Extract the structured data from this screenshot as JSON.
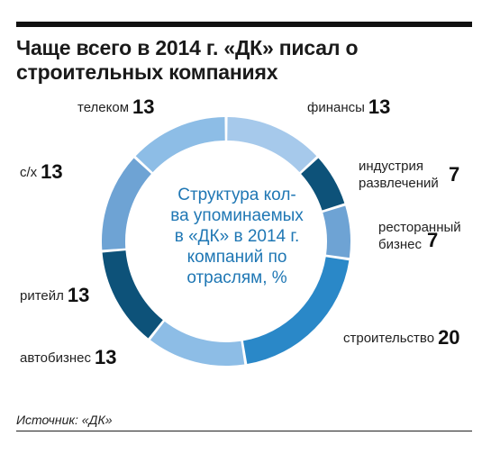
{
  "title_lines": [
    "Чаще всего в 2014 г. «ДК» писал о",
    "строительных компаниях"
  ],
  "center_lines": [
    "Структура кол-",
    "ва упоминаемых",
    "в «ДК» в 2014 г.",
    "компаний по",
    "отраслям, %"
  ],
  "source": "Источник: «ДК»",
  "colors": {
    "light": "#9ec4e8",
    "mid": "#5b9bd5",
    "mid2": "#2f86c4",
    "dark": "#0a4c73",
    "text_blue": "#1f77b4"
  },
  "chart_data": {
    "type": "pie",
    "donut": true,
    "title": "Чаще всего в 2014 г. «ДК» писал о строительных компаниях",
    "unit": "%",
    "slices": [
      {
        "label": "финансы",
        "value": 13,
        "color": "#a6c9eb"
      },
      {
        "label": "индустрия развлечений",
        "value": 7,
        "color": "#0d5279"
      },
      {
        "label": "ресторанный бизнес",
        "value": 7,
        "color": "#6ea3d4"
      },
      {
        "label": "строительство",
        "value": 20,
        "color": "#2a88c8"
      },
      {
        "label": "автобизнес",
        "value": 13,
        "color": "#8dbde6"
      },
      {
        "label": "ритейл",
        "value": 13,
        "color": "#0d5279"
      },
      {
        "label": "с/х",
        "value": 13,
        "color": "#6ea3d4"
      },
      {
        "label": "телеком",
        "value": 13,
        "color": "#8dbde6"
      }
    ]
  }
}
